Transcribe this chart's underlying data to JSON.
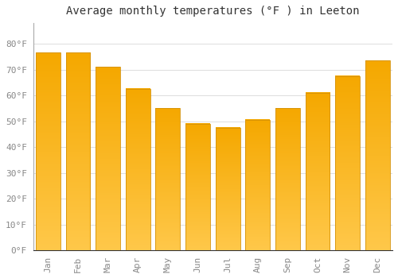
{
  "title": "Average monthly temperatures (°F ) in Leeton",
  "months": [
    "Jan",
    "Feb",
    "Mar",
    "Apr",
    "May",
    "Jun",
    "Jul",
    "Aug",
    "Sep",
    "Oct",
    "Nov",
    "Dec"
  ],
  "values": [
    76.5,
    76.5,
    71,
    62.5,
    55,
    49,
    47.5,
    50.5,
    55,
    61,
    67.5,
    73.5
  ],
  "bar_color_bottom": "#FFC84A",
  "bar_color_top": "#F5A800",
  "bar_edge_color": "#D4920A",
  "background_color": "#FFFFFF",
  "grid_color": "#DDDDDD",
  "title_fontsize": 10,
  "tick_fontsize": 8,
  "ylim": [
    0,
    88
  ],
  "yticks": [
    0,
    10,
    20,
    30,
    40,
    50,
    60,
    70,
    80
  ],
  "ylabel_format": "°F"
}
